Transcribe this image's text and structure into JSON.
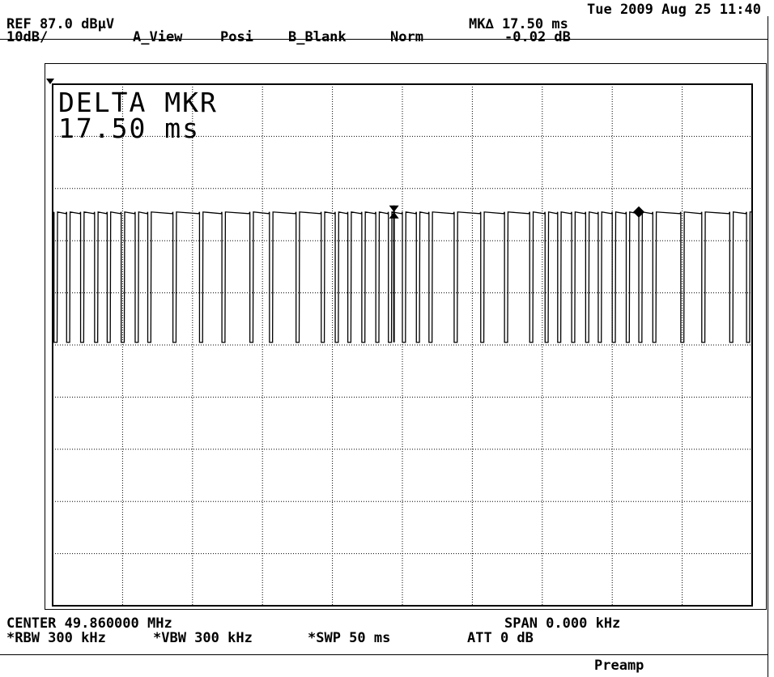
{
  "header": {
    "datetime": "Tue 2009 Aug 25 11:40",
    "ref_level": "REF 87.0 dBµV",
    "scale": "10dB/",
    "a_view": "A_View",
    "detector": "Posi",
    "b_blank": "B_Blank",
    "mode": "Norm",
    "marker_delta_time": "MK∆ 17.50 ms",
    "marker_delta_level": "-0.02 dB"
  },
  "overlay": {
    "line1": "DELTA MKR",
    "line2": "17.50 ms"
  },
  "footer": {
    "center": "CENTER 49.860000 MHz",
    "span": "SPAN 0.000 kHz",
    "rbw": "*RBW 300 kHz",
    "vbw": "*VBW 300 kHz",
    "sweep": "*SWP 50 ms",
    "att": "ATT 0 dB",
    "preamp": "Preamp"
  },
  "chart_data": {
    "type": "line",
    "title": "",
    "xlabel": "",
    "ylabel": "",
    "x_unit": "ms",
    "y_unit": "dBµV",
    "xlim": [
      0,
      50
    ],
    "ylim": [
      -13,
      87
    ],
    "grid": true,
    "reference_level_dBuV": 87.0,
    "scale_dB_per_div": 10,
    "signal_high_dBuV": 62.5,
    "signal_low_dBuV": 37.5,
    "low_pulse_starts_ms": [
      0.1,
      1.0,
      2.0,
      3.0,
      3.9,
      4.9,
      5.9,
      6.8,
      8.6,
      10.5,
      12.1,
      14.1,
      15.5,
      17.4,
      19.2,
      20.2,
      21.1,
      22.1,
      23.1,
      24.0,
      25.0,
      26.0,
      26.9,
      28.7,
      30.6,
      32.3,
      34.1,
      35.2,
      36.1,
      37.1,
      38.1,
      39.0,
      40.0,
      41.0,
      41.9,
      42.9,
      44.9,
      46.4,
      48.4,
      49.6
    ],
    "pulse_width_ms": 0.22,
    "markers": [
      {
        "type": "reference",
        "x_ms": 24.4,
        "y_dBuV": 62.5
      },
      {
        "type": "delta",
        "x_ms": 41.9,
        "y_dBuV": 62.5
      }
    ],
    "marker_delta_ms": 17.5,
    "marker_delta_dB": -0.02
  }
}
